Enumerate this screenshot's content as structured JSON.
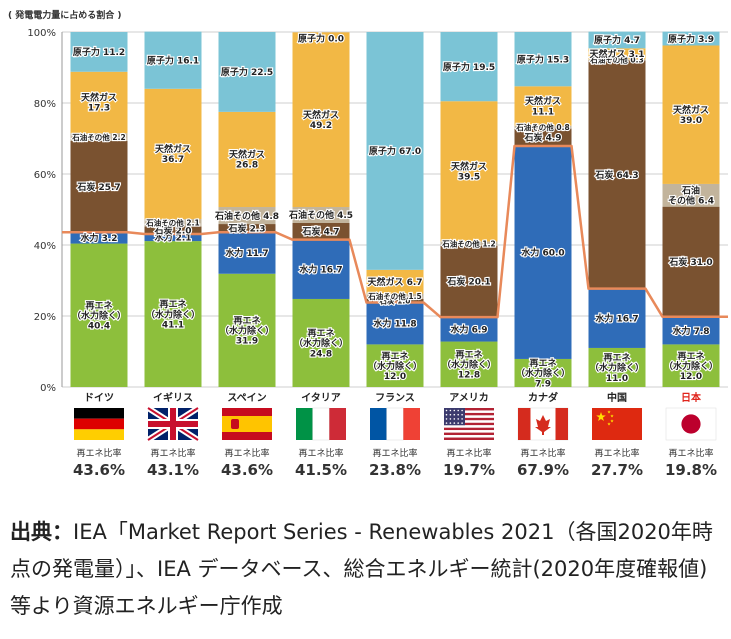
{
  "chart_data": {
    "type": "bar",
    "stacked": true,
    "ylabel": "( 発電電力量に占める割合 )",
    "yticks": [
      "0%",
      "20%",
      "40%",
      "60%",
      "80%",
      "100%"
    ],
    "ylim": [
      0,
      100
    ],
    "grid": true,
    "countries": [
      {
        "name": "ドイツ",
        "highlight": false,
        "ratio_label": "再エネ比率",
        "ratio": "43.6%",
        "renew_line": 43.6,
        "segments": [
          {
            "type": "renew",
            "value": 40.4,
            "label": "再エネ\n（水力除く）\n40.4"
          },
          {
            "type": "hydro",
            "value": 3.2,
            "label": "水力 3.2"
          },
          {
            "type": "coal",
            "value": 25.7,
            "label": "石炭 25.7"
          },
          {
            "type": "oil",
            "value": 2.2,
            "label": "石油その他 2.2"
          },
          {
            "type": "gas",
            "value": 17.3,
            "label": "天然ガス\n17.3"
          },
          {
            "type": "nuclear",
            "value": 11.2,
            "label": "原子力 11.2"
          }
        ]
      },
      {
        "name": "イギリス",
        "highlight": false,
        "ratio_label": "再エネ比率",
        "ratio": "43.1%",
        "renew_line": 43.1,
        "segments": [
          {
            "type": "renew",
            "value": 41.1,
            "label": "再エネ\n（水力除く）\n41.1"
          },
          {
            "type": "hydro",
            "value": 2.1,
            "label": "水力 2.1"
          },
          {
            "type": "coal",
            "value": 2.0,
            "label": "石炭 2.0"
          },
          {
            "type": "oil",
            "value": 2.1,
            "label": "石油その他 2.1"
          },
          {
            "type": "gas",
            "value": 36.7,
            "label": "天然ガス\n36.7"
          },
          {
            "type": "nuclear",
            "value": 16.1,
            "label": "原子力 16.1"
          }
        ]
      },
      {
        "name": "スペイン",
        "highlight": false,
        "ratio_label": "再エネ比率",
        "ratio": "43.6%",
        "renew_line": 43.6,
        "segments": [
          {
            "type": "renew",
            "value": 31.9,
            "label": "再エネ\n（水力除く）\n31.9"
          },
          {
            "type": "hydro",
            "value": 11.7,
            "label": "水力 11.7"
          },
          {
            "type": "coal",
            "value": 2.3,
            "label": "石炭 2.3"
          },
          {
            "type": "oil",
            "value": 4.8,
            "label": "石油その他 4.8"
          },
          {
            "type": "gas",
            "value": 26.8,
            "label": "天然ガス\n26.8"
          },
          {
            "type": "nuclear",
            "value": 22.5,
            "label": "原子力 22.5"
          }
        ]
      },
      {
        "name": "イタリア",
        "highlight": false,
        "ratio_label": "再エネ比率",
        "ratio": "41.5%",
        "renew_line": 41.5,
        "segments": [
          {
            "type": "renew",
            "value": 24.8,
            "label": "再エネ\n（水力除く）\n24.8"
          },
          {
            "type": "hydro",
            "value": 16.7,
            "label": "水力 16.7"
          },
          {
            "type": "coal",
            "value": 4.7,
            "label": "石炭 4.7"
          },
          {
            "type": "oil",
            "value": 4.5,
            "label": "石油その他 4.5"
          },
          {
            "type": "gas",
            "value": 49.2,
            "label": "天然ガス\n49.2"
          },
          {
            "type": "nuclear",
            "value": 0.0,
            "label": "原子力 0.0"
          }
        ]
      },
      {
        "name": "フランス",
        "highlight": false,
        "ratio_label": "再エネ比率",
        "ratio": "23.8%",
        "renew_line": 23.8,
        "segments": [
          {
            "type": "renew",
            "value": 12.0,
            "label": "再エネ\n（水力除く）\n12.0"
          },
          {
            "type": "hydro",
            "value": 11.8,
            "label": "水力 11.8"
          },
          {
            "type": "coal",
            "value": 1.0,
            "label": "石炭 1.0"
          },
          {
            "type": "oil",
            "value": 1.5,
            "label": "石油その他 1.5"
          },
          {
            "type": "gas",
            "value": 6.7,
            "label": "天然ガス 6.7"
          },
          {
            "type": "nuclear",
            "value": 67.0,
            "label": "原子力 67.0"
          }
        ]
      },
      {
        "name": "アメリカ",
        "highlight": false,
        "ratio_label": "再エネ比率",
        "ratio": "19.7%",
        "renew_line": 19.7,
        "segments": [
          {
            "type": "renew",
            "value": 12.8,
            "label": "再エネ\n（水力除く）\n12.8"
          },
          {
            "type": "hydro",
            "value": 6.9,
            "label": "水力 6.9"
          },
          {
            "type": "coal",
            "value": 20.1,
            "label": "石炭 20.1"
          },
          {
            "type": "oil",
            "value": 1.2,
            "label": "石油その他 1.2"
          },
          {
            "type": "gas",
            "value": 39.5,
            "label": "天然ガス\n39.5"
          },
          {
            "type": "nuclear",
            "value": 19.5,
            "label": "原子力 19.5"
          }
        ]
      },
      {
        "name": "カナダ",
        "highlight": false,
        "ratio_label": "再エネ比率",
        "ratio": "67.9%",
        "renew_line": 67.9,
        "segments": [
          {
            "type": "renew",
            "value": 7.9,
            "label": "再エネ\n（水力除く）\n7.9"
          },
          {
            "type": "hydro",
            "value": 60.0,
            "label": "水力 60.0"
          },
          {
            "type": "coal",
            "value": 4.9,
            "label": "石炭 4.9"
          },
          {
            "type": "oil",
            "value": 0.8,
            "label": "石油その他 0.8"
          },
          {
            "type": "gas",
            "value": 11.1,
            "label": "天然ガス\n11.1"
          },
          {
            "type": "nuclear",
            "value": 15.3,
            "label": "原子力 15.3"
          }
        ]
      },
      {
        "name": "中国",
        "highlight": false,
        "ratio_label": "再エネ比率",
        "ratio": "27.7%",
        "renew_line": 27.7,
        "segments": [
          {
            "type": "renew",
            "value": 11.0,
            "label": "再エネ\n（水力除く）\n11.0"
          },
          {
            "type": "hydro",
            "value": 16.7,
            "label": "水力 16.7"
          },
          {
            "type": "coal",
            "value": 64.3,
            "label": "石炭 64.3"
          },
          {
            "type": "oil",
            "value": 0.3,
            "label": "石油その他 0.3"
          },
          {
            "type": "gas",
            "value": 3.1,
            "label": "天然ガス 3.1"
          },
          {
            "type": "nuclear",
            "value": 4.7,
            "label": "原子力 4.7"
          }
        ]
      },
      {
        "name": "日本",
        "highlight": true,
        "ratio_label": "再エネ比率",
        "ratio": "19.8%",
        "renew_line": 19.8,
        "segments": [
          {
            "type": "renew",
            "value": 12.0,
            "label": "再エネ\n（水力除く）\n12.0"
          },
          {
            "type": "hydro",
            "value": 7.8,
            "label": "水力 7.8"
          },
          {
            "type": "coal",
            "value": 31.0,
            "label": "石炭 31.0"
          },
          {
            "type": "oil",
            "value": 6.4,
            "label": "石油\nその他 6.4"
          },
          {
            "type": "gas",
            "value": 39.0,
            "label": "天然ガス\n39.0"
          },
          {
            "type": "nuclear",
            "value": 3.9,
            "label": "原子力 3.9"
          }
        ]
      }
    ]
  },
  "colors": {
    "renew": "#8dbf3c",
    "hydro": "#2f6cb8",
    "coal": "#7a5230",
    "oil": "#c2b49c",
    "gas": "#f2b845",
    "nuclear": "#7bc4d6",
    "line": "#e8895a",
    "highlight_text": "#e0241b"
  },
  "source": {
    "label": "出典：",
    "text": "IEA「Market Report Series - Renewables 2021（各国2020年時点の発電量）」、IEA データベース、総合エネルギー統計(2020年度確報値) 等より資源エネルギー庁作成"
  }
}
